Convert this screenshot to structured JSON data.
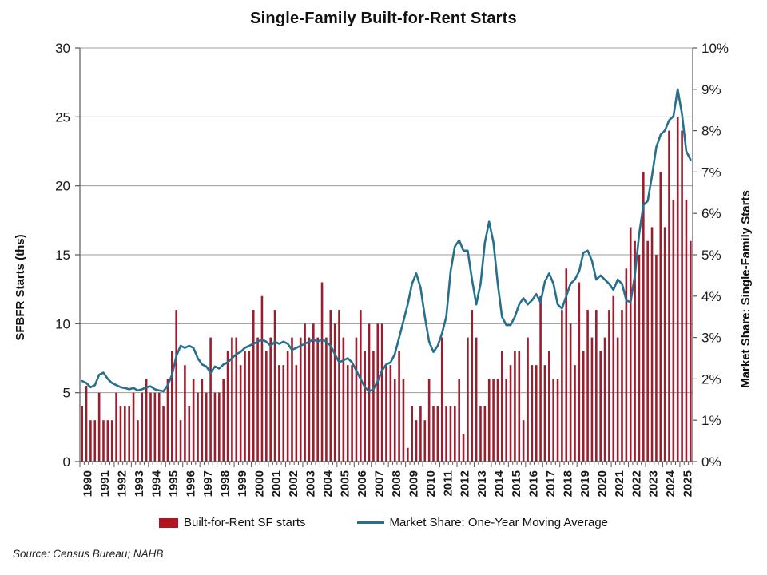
{
  "title": "Single-Family Built-for-Rent Starts",
  "source_note": "Source: Census Bureau; NAHB",
  "legend": {
    "bars_label": "Built-for-Rent SF starts",
    "line_label": "Market Share: One-Year Moving Average"
  },
  "colors": {
    "bar": "#9B1E2E",
    "legend_swatch": "#B5121F",
    "line": "#26708E",
    "grid": "#9c9c9c",
    "axis": "#595959",
    "tick_text": "#1a1a1a",
    "title_text": "#111111"
  },
  "chart_data": {
    "type": "bar+line",
    "title": "Single-Family Built-for-Rent Starts",
    "x_start": "1990Q1",
    "x_end": "2025Q3",
    "x_year_labels": [
      "1990",
      "1991",
      "1992",
      "1993",
      "1994",
      "1995",
      "1996",
      "1997",
      "1998",
      "1999",
      "2000",
      "2001",
      "2002",
      "2003",
      "2004",
      "2005",
      "2006",
      "2007",
      "2008",
      "2009",
      "2010",
      "2011",
      "2012",
      "2013",
      "2014",
      "2015",
      "2016",
      "2017",
      "2018",
      "2019",
      "2020",
      "2021",
      "2022",
      "2023",
      "2024",
      "2025"
    ],
    "left_axis": {
      "title": "SFBFR Starts (ths)",
      "min": 0,
      "max": 30,
      "step": 5,
      "tick_labels": [
        "0",
        "5",
        "10",
        "15",
        "20",
        "25",
        "30"
      ]
    },
    "right_axis": {
      "title": "Market Share: Single-Family Starts",
      "min": 0,
      "max": 10,
      "step": 1,
      "tick_labels": [
        "0%",
        "1%",
        "2%",
        "3%",
        "4%",
        "5%",
        "6%",
        "7%",
        "8%",
        "9%",
        "10%"
      ]
    },
    "grid": "horizontal, at left-axis multiples of 5",
    "legend_position": "bottom-center",
    "series": [
      {
        "name": "Built-for-Rent SF starts",
        "type": "bar",
        "axis": "left",
        "units": "thousands of starts per quarter",
        "values": [
          4,
          5.5,
          3,
          3,
          5,
          3,
          3,
          3,
          5,
          4,
          4,
          4,
          5,
          3,
          5,
          6,
          5,
          5,
          5,
          4,
          6,
          8,
          11,
          3,
          7,
          4,
          6,
          5,
          6,
          5,
          9,
          5,
          5,
          6,
          8,
          9,
          9,
          7,
          8,
          8,
          11,
          9,
          12,
          8,
          9,
          11,
          7,
          7,
          8,
          9,
          7,
          9,
          10,
          9,
          10,
          9,
          13,
          9,
          11,
          10,
          11,
          9,
          7,
          7,
          9,
          11,
          8,
          10,
          8,
          10,
          10,
          7,
          7,
          6,
          8,
          6,
          1,
          4,
          3,
          4,
          3,
          6,
          4,
          4,
          9,
          4,
          4,
          4,
          6,
          2,
          9,
          11,
          9,
          4,
          4,
          6,
          6,
          6,
          8,
          6,
          7,
          8,
          8,
          3,
          9,
          7,
          7,
          12,
          7,
          8,
          6,
          6,
          11,
          14,
          10,
          7,
          13,
          8,
          11,
          9,
          11,
          8,
          9,
          11,
          12,
          9,
          11,
          14,
          17,
          16,
          15,
          21,
          16,
          17,
          15,
          21,
          17,
          24,
          19,
          25,
          24,
          19,
          16
        ]
      },
      {
        "name": "Market Share: One-Year Moving Average",
        "type": "line",
        "axis": "right",
        "units": "percent of single-family starts",
        "values": [
          1.95,
          1.9,
          1.8,
          1.85,
          2.1,
          2.15,
          2.0,
          1.9,
          1.85,
          1.8,
          1.78,
          1.75,
          1.78,
          1.72,
          1.75,
          1.8,
          1.82,
          1.75,
          1.72,
          1.7,
          1.85,
          2.1,
          2.55,
          2.8,
          2.75,
          2.8,
          2.75,
          2.5,
          2.35,
          2.3,
          2.15,
          2.3,
          2.25,
          2.35,
          2.4,
          2.5,
          2.6,
          2.65,
          2.75,
          2.8,
          2.85,
          2.9,
          2.95,
          2.9,
          2.8,
          2.9,
          2.85,
          2.9,
          2.85,
          2.7,
          2.75,
          2.8,
          2.85,
          2.9,
          2.95,
          2.9,
          2.95,
          2.9,
          2.8,
          2.6,
          2.4,
          2.45,
          2.5,
          2.4,
          2.2,
          2.0,
          1.8,
          1.7,
          1.75,
          1.95,
          2.2,
          2.35,
          2.4,
          2.6,
          3.0,
          3.4,
          3.8,
          4.3,
          4.55,
          4.2,
          3.5,
          2.9,
          2.65,
          2.8,
          3.1,
          3.5,
          4.6,
          5.2,
          5.35,
          5.1,
          5.1,
          4.4,
          3.8,
          4.3,
          5.3,
          5.8,
          5.3,
          4.3,
          3.5,
          3.3,
          3.3,
          3.5,
          3.8,
          3.95,
          3.8,
          3.9,
          4.05,
          3.85,
          4.35,
          4.55,
          4.3,
          3.8,
          3.7,
          4.0,
          4.3,
          4.4,
          4.6,
          5.05,
          5.1,
          4.85,
          4.4,
          4.5,
          4.4,
          4.3,
          4.15,
          4.4,
          4.3,
          3.9,
          3.85,
          4.5,
          5.5,
          6.2,
          6.3,
          6.9,
          7.6,
          7.9,
          8.0,
          8.25,
          8.35,
          9.0,
          8.4,
          7.5,
          7.3
        ]
      }
    ]
  }
}
